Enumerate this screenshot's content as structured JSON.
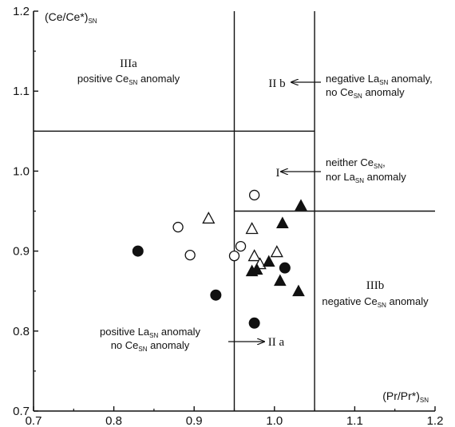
{
  "chart_data": {
    "type": "scatter",
    "title": "",
    "xlabel": "(Pr/Pr*)SN",
    "ylabel": "(Ce/Ce*)SN",
    "xlim": [
      0.7,
      1.2
    ],
    "ylim": [
      0.7,
      1.2
    ],
    "x_ticks": [
      "0.7",
      "0.8",
      "0.9",
      "1.0",
      "1.1",
      "1.2"
    ],
    "y_ticks": [
      "0.7",
      "0.8",
      "0.9",
      "1.0",
      "1.1",
      "1.2"
    ],
    "grid": false,
    "legend": "none",
    "series": [
      {
        "marker": "open-circle",
        "x": [
          0.88,
          0.895,
          0.95,
          0.958,
          0.975
        ],
        "y": [
          0.93,
          0.895,
          0.894,
          0.906,
          0.97
        ]
      },
      {
        "marker": "filled-circle",
        "x": [
          0.83,
          0.927,
          0.975,
          1.013
        ],
        "y": [
          0.9,
          0.845,
          0.81,
          0.879
        ]
      },
      {
        "marker": "open-triangle",
        "x": [
          0.918,
          0.972,
          0.975,
          0.982,
          1.003
        ],
        "y": [
          0.94,
          0.927,
          0.893,
          0.883,
          0.898
        ]
      },
      {
        "marker": "filled-triangle",
        "x": [
          0.972,
          0.978,
          0.993,
          1.007,
          1.01,
          1.03,
          1.033
        ],
        "y": [
          0.874,
          0.876,
          0.886,
          0.862,
          0.934,
          0.849,
          0.956
        ]
      }
    ],
    "boundaries": {
      "vertical": [
        {
          "x": 0.95,
          "y": [
            0.7,
            1.2
          ]
        },
        {
          "x": 1.05,
          "y": [
            0.7,
            1.2
          ]
        }
      ],
      "horizontal": [
        {
          "y": 1.05,
          "x": [
            0.7,
            1.05
          ]
        },
        {
          "y": 0.95,
          "x": [
            0.95,
            1.2
          ]
        }
      ]
    },
    "annotations": {
      "IIIa": {
        "roman": "IIIa",
        "lines": [
          "positive Ce",
          "SN",
          " anomaly"
        ]
      },
      "IIb": {
        "roman": "II b",
        "line1": [
          "negative La",
          "SN",
          " anomaly,"
        ],
        "line2": [
          "no Ce",
          "SN",
          " anomaly"
        ]
      },
      "I": {
        "roman": "I",
        "line1": [
          "neither Ce",
          "SN",
          ","
        ],
        "line2": [
          "nor La",
          "SN",
          " anomaly"
        ]
      },
      "IIIb": {
        "roman": "IIIb",
        "line1": [
          "negative Ce",
          "SN",
          " anomaly"
        ]
      },
      "IIa": {
        "roman": "II a",
        "line1": [
          "positive La",
          "SN",
          " anomaly"
        ],
        "line2": [
          "no Ce",
          "SN",
          " anomaly"
        ]
      }
    },
    "axis_title_parts": {
      "y": [
        "(Ce/Ce*)",
        "SN"
      ],
      "x": [
        "(Pr/Pr*)",
        "SN"
      ]
    }
  }
}
